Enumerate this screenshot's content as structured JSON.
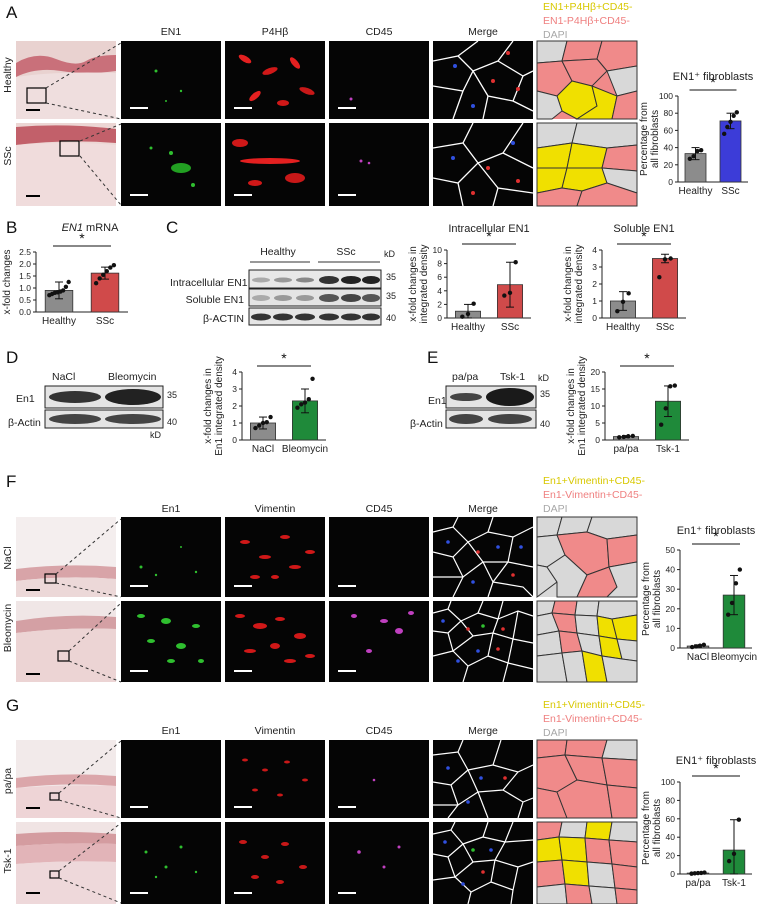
{
  "figure": {
    "panel_letters": [
      "A",
      "B",
      "C",
      "D",
      "E",
      "F",
      "G"
    ],
    "panelA": {
      "channel_headers": [
        "EN1",
        "P4Hβ",
        "CD45",
        "Merge"
      ],
      "row_labels": [
        "Healthy",
        "SSc"
      ],
      "legend": [
        {
          "text": "EN1+P4Hβ+CD45-",
          "color": "#e8d800"
        },
        {
          "text": "EN1-P4Hβ+CD45-",
          "color": "#ef7f7f"
        },
        {
          "text": "DAPI",
          "color": "#a8a8a8"
        }
      ]
    },
    "panelB": {
      "title_italic": "EN1",
      "title_rest": " mRNA"
    },
    "panelC": {
      "blot_groups": [
        "Healthy",
        "SSc"
      ],
      "kd_label": "kD",
      "row_labels": [
        "Intracellular EN1",
        "Soluble EN1",
        "β-ACTIN"
      ],
      "markers": [
        "35",
        "35",
        "40"
      ]
    },
    "panelD": {
      "groups": [
        "NaCl",
        "Bleomycin"
      ],
      "row_labels": [
        "En1",
        "β-Actin"
      ],
      "markers": [
        "35",
        "40"
      ],
      "kd_label": "kD"
    },
    "panelE": {
      "groups": [
        "pa/pa",
        "Tsk-1"
      ],
      "row_labels": [
        "En1",
        "β-Actin"
      ],
      "markers": [
        "35",
        "40"
      ],
      "kd_label": "kD"
    },
    "panelF": {
      "channel_headers": [
        "En1",
        "Vimentin",
        "CD45",
        "Merge"
      ],
      "row_labels": [
        "NaCl",
        "Bleomycin"
      ],
      "legend": [
        {
          "text": "En1+Vimentin+CD45-",
          "color": "#e8d800"
        },
        {
          "text": "En1-Vimentin+CD45-",
          "color": "#ef7f7f"
        },
        {
          "text": "DAPI",
          "color": "#a8a8a8"
        }
      ]
    },
    "panelG": {
      "channel_headers": [
        "En1",
        "Vimentin",
        "CD45",
        "Merge"
      ],
      "row_labels": [
        "pa/pa",
        "Tsk-1"
      ],
      "legend": [
        {
          "text": "En1+Vimentin+CD45-",
          "color": "#e8d800"
        },
        {
          "text": "En1-Vimentin+CD45-",
          "color": "#ef7f7f"
        },
        {
          "text": "DAPI",
          "color": "#a8a8a8"
        }
      ]
    },
    "significance": "*"
  },
  "chart_data": [
    {
      "id": "A",
      "type": "bar",
      "title": "EN1⁺ fibroblasts",
      "ylabel": "Percentage from all fibroblasts",
      "categories": [
        "Healthy",
        "SSc"
      ],
      "values": [
        33,
        71
      ],
      "errors": [
        7,
        9
      ],
      "colors": [
        "#8c8c8c",
        "#3c3cd8"
      ],
      "points": [
        [
          27,
          30,
          36,
          37
        ],
        [
          56,
          64,
          70,
          77,
          81
        ]
      ],
      "ylim": [
        0,
        100
      ],
      "yticks": [
        0,
        20,
        40,
        60,
        80,
        100
      ]
    },
    {
      "id": "B",
      "type": "bar",
      "title": "EN1 mRNA",
      "ylabel": "x-fold changes",
      "categories": [
        "Healthy",
        "SSc"
      ],
      "values": [
        0.9,
        1.62
      ],
      "errors": [
        0.35,
        0.25
      ],
      "colors": [
        "#8c8c8c",
        "#d04a4a"
      ],
      "points": [
        [
          0.7,
          0.75,
          0.8,
          0.82,
          0.85,
          0.9,
          1.05,
          1.25
        ],
        [
          1.2,
          1.4,
          1.55,
          1.7,
          1.85,
          1.95
        ]
      ],
      "ylim": [
        0,
        2.5
      ],
      "yticks": [
        0.0,
        0.5,
        1.0,
        1.5,
        2.0,
        2.5
      ]
    },
    {
      "id": "C1",
      "type": "bar",
      "title": "Intracellular EN1",
      "ylabel": "x-fold changes in integrated density",
      "categories": [
        "Healthy",
        "SSc"
      ],
      "values": [
        1,
        4.9
      ],
      "errors": [
        1,
        3.3
      ],
      "colors": [
        "#8c8c8c",
        "#d04a4a"
      ],
      "points": [
        [
          0.2,
          0.6,
          2.1
        ],
        [
          3.3,
          3.7,
          8.2
        ]
      ],
      "ylim": [
        0,
        10
      ],
      "yticks": [
        0,
        2,
        4,
        6,
        8,
        10
      ]
    },
    {
      "id": "C2",
      "type": "bar",
      "title": "Soluble EN1",
      "ylabel": "x-fold changes in integrated density",
      "categories": [
        "Healthy",
        "SSc"
      ],
      "values": [
        1,
        3.5
      ],
      "errors": [
        0.55,
        0.25
      ],
      "colors": [
        "#8c8c8c",
        "#d04a4a"
      ],
      "points": [
        [
          0.4,
          0.95,
          1.45
        ],
        [
          2.4,
          3.45,
          3.5
        ]
      ],
      "ylim": [
        0,
        4
      ],
      "yticks": [
        0,
        1,
        2,
        3,
        4
      ]
    },
    {
      "id": "D",
      "type": "bar",
      "ylabel": "x-fold changes in En1 integrated density",
      "categories": [
        "NaCl",
        "Bleomycin"
      ],
      "values": [
        1,
        2.3
      ],
      "errors": [
        0.35,
        0.7
      ],
      "colors": [
        "#8c8c8c",
        "#1f8a3a"
      ],
      "points": [
        [
          0.7,
          0.85,
          1.0,
          1.05,
          1.35
        ],
        [
          1.9,
          2.1,
          2.2,
          2.4,
          3.6
        ]
      ],
      "ylim": [
        0,
        4
      ],
      "yticks": [
        0,
        1,
        2,
        3,
        4
      ]
    },
    {
      "id": "E",
      "type": "bar",
      "ylabel": "x-fold changes in En1 integrated density",
      "categories": [
        "pa/pa",
        "Tsk-1"
      ],
      "values": [
        1,
        11.4
      ],
      "errors": [
        0.3,
        4.5
      ],
      "colors": [
        "#8c8c8c",
        "#1f8a3a"
      ],
      "points": [
        [
          0.8,
          0.9,
          1.1,
          1.2
        ],
        [
          4.5,
          9.3,
          15.8,
          16
        ]
      ],
      "ylim": [
        0,
        20
      ],
      "yticks": [
        0,
        5,
        10,
        15,
        20
      ]
    },
    {
      "id": "F",
      "type": "bar",
      "title": "En1⁺ fibroblasts",
      "ylabel": "Percentage from all fibroblasts",
      "categories": [
        "NaCl",
        "Bleomycin"
      ],
      "values": [
        1,
        27
      ],
      "errors": [
        0.6,
        10
      ],
      "colors": [
        "#8c8c8c",
        "#1f8a3a"
      ],
      "points": [
        [
          0.5,
          0.8,
          1.2,
          1.6
        ],
        [
          17,
          23,
          33,
          40
        ]
      ],
      "ylim": [
        0,
        50
      ],
      "yticks": [
        0,
        10,
        20,
        30,
        40,
        50
      ]
    },
    {
      "id": "G",
      "type": "bar",
      "title": "EN1⁺ fibroblasts",
      "ylabel": "Percentage from all fibroblasts",
      "categories": [
        "pa/pa",
        "Tsk-1"
      ],
      "values": [
        1,
        26
      ],
      "errors": [
        0.5,
        33
      ],
      "colors": [
        "#8c8c8c",
        "#1f8a3a"
      ],
      "points": [
        [
          0.4,
          0.8,
          1,
          1.2,
          1.6
        ],
        [
          14,
          22,
          59
        ]
      ],
      "ylim": [
        0,
        100
      ],
      "yticks": [
        0,
        20,
        40,
        60,
        80,
        100
      ]
    }
  ]
}
